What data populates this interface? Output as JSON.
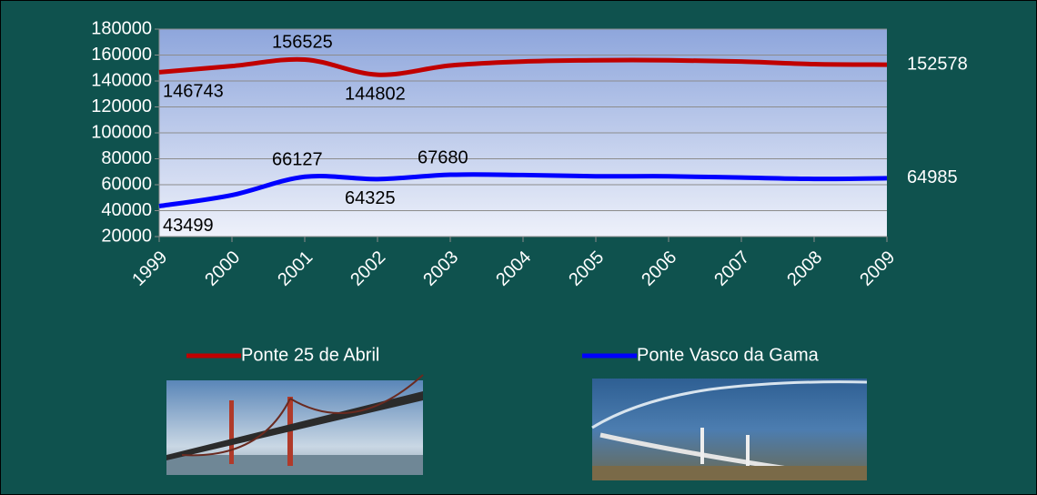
{
  "chart_data": {
    "type": "line",
    "categories": [
      "1999",
      "2000",
      "2001",
      "2002",
      "2003",
      "2004",
      "2005",
      "2006",
      "2007",
      "2008",
      "2009"
    ],
    "series": [
      {
        "name": "Ponte 25 de Abril",
        "color": "#c00000",
        "values": [
          146743,
          151500,
          156525,
          144802,
          151900,
          155000,
          156000,
          156000,
          155000,
          153000,
          152578
        ],
        "value_labels": [
          "146743",
          null,
          "156525",
          "144802",
          null,
          null,
          null,
          null,
          null,
          null,
          "152578"
        ]
      },
      {
        "name": "Ponte Vasco da Gama",
        "color": "#0000ff",
        "values": [
          43499,
          52000,
          66127,
          64325,
          67680,
          67500,
          66500,
          66500,
          65500,
          64500,
          64985
        ],
        "value_labels": [
          "43499",
          null,
          "66127",
          "64325",
          "67680",
          null,
          null,
          null,
          null,
          null,
          "64985"
        ]
      }
    ],
    "ylim": [
      20000,
      180000
    ],
    "yticks": [
      20000,
      40000,
      60000,
      80000,
      100000,
      120000,
      140000,
      160000,
      180000
    ],
    "grid": true
  }
}
